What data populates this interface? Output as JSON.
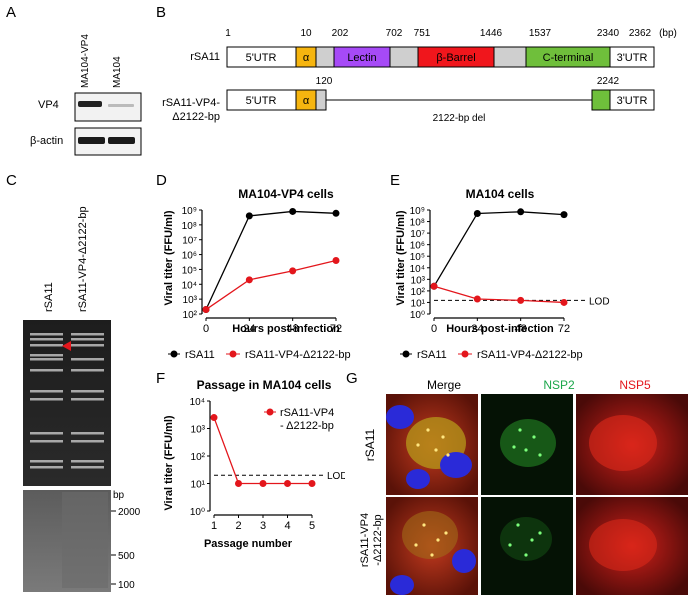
{
  "panels": {
    "A": "A",
    "B": "B",
    "C": "C",
    "D": "D",
    "E": "E",
    "F": "F",
    "G": "G"
  },
  "panelA": {
    "lanes": [
      "MA104-VP4",
      "MA104"
    ],
    "rows": [
      "VP4",
      "β-actin"
    ]
  },
  "panelB": {
    "rows": [
      "rSA11",
      "rSA11-VP4-\nΔ2122-bp"
    ],
    "row1_label": "rSA11",
    "row2_label_l1": "rSA11-VP4-",
    "row2_label_l2": "Δ2122-bp",
    "unit": "(bp)",
    "top_positions": [
      "1",
      "10",
      "202",
      "702",
      "751",
      "1446",
      "1537",
      "2340",
      "2362"
    ],
    "bottom_positions": [
      "120",
      "2242"
    ],
    "segments": {
      "utr5": "5'UTR",
      "alpha": "α",
      "lectin": "Lectin",
      "barrel": "β-Barrel",
      "cterm": "C-terminal",
      "utr3": "3'UTR"
    },
    "deletion": "2122-bp del",
    "colors": {
      "alpha": "#f6b50f",
      "lectin": "#a64af7",
      "barrel": "#f0161c",
      "cterm": "#6fbf3b",
      "gap": "#cfcfcf"
    }
  },
  "panelC": {
    "lanes": [
      "rSA11",
      "rSA11-VP4-Δ2122-bp"
    ],
    "bp_label": "bp",
    "ladder": [
      "2000",
      "500",
      "100"
    ]
  },
  "panelD": {
    "title": "MA104-VP4 cells",
    "ylabel": "Viral titer (FFU/ml)",
    "xlabel": "Hours post-infection",
    "legend": [
      "rSA11",
      "rSA11-VP4-Δ2122-bp"
    ]
  },
  "panelE": {
    "title": "MA104 cells",
    "ylabel": "Viral titer (FFU/ml)",
    "xlabel": "Hours post-infection",
    "lod": "LOD",
    "legend": [
      "rSA11",
      "rSA11-VP4-Δ2122-bp"
    ]
  },
  "panelF": {
    "title": "Passage in MA104 cells",
    "ylabel": "Viral titer (FFU/ml)",
    "xlabel": "Passage number",
    "lod": "LOD",
    "legend_l1": "rSA11-VP4",
    "legend_l2": "- Δ2122-bp"
  },
  "panelG": {
    "columns": [
      "Merge",
      "NSP2",
      "NSP5"
    ],
    "rows": [
      "rSA11",
      "rSA11-VP4\n-Δ2122-bp"
    ],
    "row1": "rSA11",
    "row2_l1": "rSA11-VP4",
    "row2_l2": "-Δ2122-bp",
    "colors": {
      "NSP2": "#1aa64a",
      "NSP5": "#e3161c"
    }
  },
  "chart_data": [
    {
      "panel": "D",
      "type": "line",
      "title": "MA104-VP4 cells",
      "xlabel": "Hours post-infection",
      "ylabel": "Viral titer (FFU/ml)",
      "x": [
        0,
        24,
        48,
        72
      ],
      "y_scale": "log",
      "ylim": [
        100,
        1000000000
      ],
      "x_ticks": [
        "0",
        "24",
        "48",
        "72"
      ],
      "y_ticks": [
        "10^2",
        "10^3",
        "10^4",
        "10^5",
        "10^6",
        "10^7",
        "10^8",
        "10^9"
      ],
      "series": [
        {
          "name": "rSA11",
          "color": "#000000",
          "values": [
            200,
            400000000,
            800000000,
            600000000
          ]
        },
        {
          "name": "rSA11-VP4-Δ2122-bp",
          "color": "#e3161c",
          "values": [
            200,
            20000,
            80000,
            400000
          ]
        }
      ]
    },
    {
      "panel": "E",
      "type": "line",
      "title": "MA104 cells",
      "xlabel": "Hours post-infection",
      "ylabel": "Viral titer (FFU/ml)",
      "x": [
        0,
        24,
        48,
        72
      ],
      "y_scale": "log",
      "ylim": [
        1,
        1000000000
      ],
      "lod": 15,
      "x_ticks": [
        "0",
        "24",
        "48",
        "72"
      ],
      "y_ticks": [
        "10^0",
        "10^1",
        "10^2",
        "10^3",
        "10^4",
        "10^5",
        "10^6",
        "10^7",
        "10^8",
        "10^9"
      ],
      "series": [
        {
          "name": "rSA11",
          "color": "#000000",
          "values": [
            250,
            500000000,
            700000000,
            400000000
          ]
        },
        {
          "name": "rSA11-VP4-Δ2122-bp",
          "color": "#e3161c",
          "values": [
            250,
            20,
            15,
            10
          ]
        }
      ]
    },
    {
      "panel": "F",
      "type": "line",
      "title": "Passage in MA104 cells",
      "xlabel": "Passage number",
      "ylabel": "Viral titer (FFU/ml)",
      "x": [
        1,
        2,
        3,
        4,
        5
      ],
      "y_scale": "log",
      "ylim": [
        1,
        10000
      ],
      "lod": 20,
      "x_ticks": [
        "1",
        "2",
        "3",
        "4",
        "5"
      ],
      "y_ticks": [
        "10^0",
        "10^1",
        "10^2",
        "10^3",
        "10^4"
      ],
      "series": [
        {
          "name": "rSA11-VP4 - Δ2122-bp",
          "color": "#e3161c",
          "values": [
            2500,
            10,
            10,
            10,
            10
          ]
        }
      ]
    }
  ]
}
